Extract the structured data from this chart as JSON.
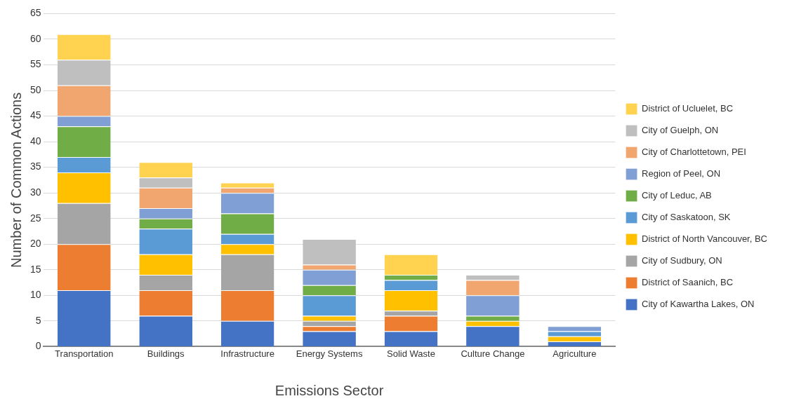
{
  "chart_data": {
    "type": "bar",
    "stacked": true,
    "xlabel": "Emissions Sector",
    "ylabel": "Number of Common Actions",
    "categories": [
      "Transportation",
      "Buildings",
      "Infrastructure",
      "Energy Systems",
      "Solid Waste",
      "Culture Change",
      "Agriculture"
    ],
    "series": [
      {
        "name": "City of Kawartha Lakes, ON",
        "color": "#4472c4",
        "values": [
          11,
          6,
          5,
          3,
          3,
          4,
          1
        ]
      },
      {
        "name": "District of Saanich, BC",
        "color": "#ed7d31",
        "values": [
          9,
          5,
          6,
          1,
          3,
          0,
          0
        ]
      },
      {
        "name": "City of Sudbury, ON",
        "color": "#a5a5a5",
        "values": [
          8,
          3,
          7,
          1,
          1,
          0,
          0
        ]
      },
      {
        "name": "District of North Vancouver, BC",
        "color": "#ffc000",
        "values": [
          6,
          4,
          2,
          1,
          4,
          1,
          1
        ]
      },
      {
        "name": "City of Saskatoon, SK",
        "color": "#5b9bd5",
        "values": [
          3,
          5,
          2,
          4,
          2,
          0,
          1
        ]
      },
      {
        "name": "City of Leduc, AB",
        "color": "#70ad47",
        "values": [
          6,
          2,
          4,
          2,
          1,
          1,
          0
        ]
      },
      {
        "name": "Region of Peel, ON",
        "color": "#7f9fd5",
        "values": [
          2,
          2,
          4,
          3,
          0,
          4,
          1
        ]
      },
      {
        "name": "City of Charlottetown, PEI",
        "color": "#f1a56f",
        "values": [
          6,
          4,
          1,
          1,
          0,
          3,
          0
        ]
      },
      {
        "name": "City of Guelph, ON",
        "color": "#bfbfbf",
        "values": [
          5,
          2,
          0,
          5,
          0,
          1,
          0
        ]
      },
      {
        "name": "District of Ucluelet, BC",
        "color": "#ffd34f",
        "values": [
          5,
          3,
          1,
          0,
          4,
          0,
          0
        ]
      }
    ],
    "ylim": [
      0,
      65
    ],
    "yticks": [
      0,
      5,
      10,
      15,
      20,
      25,
      30,
      35,
      40,
      45,
      50,
      55,
      60,
      65
    ],
    "grid": "y",
    "legend": "right"
  }
}
